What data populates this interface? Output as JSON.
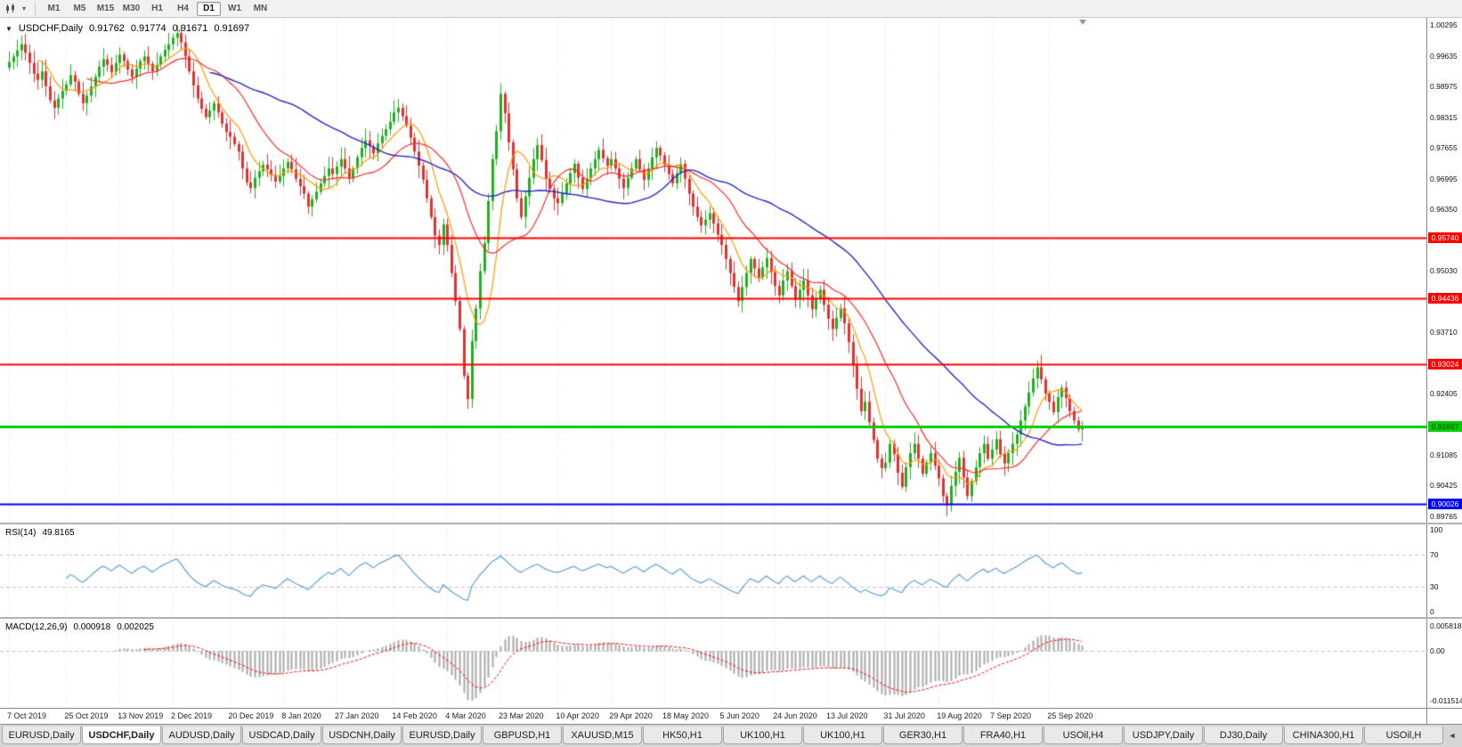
{
  "toolbar": {
    "timeframes": [
      "M1",
      "M5",
      "M15",
      "M30",
      "H1",
      "H4",
      "D1",
      "W1",
      "MN"
    ],
    "active_timeframe": "D1"
  },
  "header": {
    "symbol": "USDCHF,Daily",
    "open": "0.91762",
    "high": "0.91774",
    "low": "0.91671",
    "close": "0.91697"
  },
  "rsi_panel": {
    "label": "RSI(14)",
    "value": "49.8165",
    "y_ticks": [
      "100",
      "70",
      "30",
      "0"
    ]
  },
  "macd_panel": {
    "label": "MACD(12,26,9)",
    "value_main": "0.000918",
    "value_signal": "0.002025",
    "y_ticks": [
      "0.005818",
      "0.00",
      "-0.011514"
    ]
  },
  "price_axis": {
    "ticks": [
      "1.00295",
      "0.99635",
      "0.98975",
      "0.98315",
      "0.97655",
      "0.96995",
      "0.96350",
      "0.95030",
      "0.93710",
      "0.92405",
      "0.91085",
      "0.90425",
      "0.89765"
    ]
  },
  "time_axis": {
    "dates": [
      "7 Oct 2019",
      "25 Oct 2019",
      "13 Nov 2019",
      "2 Dec 2019",
      "20 Dec 2019",
      "8 Jan 2020",
      "27 Jan 2020",
      "14 Feb 2020",
      "4 Mar 2020",
      "23 Mar 2020",
      "10 Apr 2020",
      "29 Apr 2020",
      "18 May 2020",
      "5 Jun 2020",
      "24 Jun 2020",
      "13 Jul 2020",
      "31 Jul 2020",
      "19 Aug 2020",
      "7 Sep 2020",
      "25 Sep 2020"
    ]
  },
  "tabs": {
    "items": [
      "EURUSD,Daily",
      "USDCHF,Daily",
      "AUDUSD,Daily",
      "USDCAD,Daily",
      "USDCNH,Daily",
      "EURUSD,Daily",
      "GBPUSD,H1",
      "XAUUSD,M15",
      "HK50,H1",
      "UK100,H1",
      "UK100,H1",
      "GER30,H1",
      "FRA40,H1",
      "USOil,H4",
      "USDJPY,Daily",
      "DJ30,Daily",
      "CHINA300,H1",
      "USOil,H"
    ],
    "active_index": 1,
    "scroll_left_icon": "◄"
  },
  "chart_data": [
    {
      "type": "candlestick",
      "title": "USDCHF,Daily",
      "ylim": [
        0.89765,
        1.00295
      ],
      "y_tick_labels": [
        "1.00295",
        "0.99635",
        "0.98975",
        "0.98315",
        "0.97655",
        "0.96995",
        "0.96350",
        "0.95030",
        "0.93710",
        "0.92405",
        "0.91085",
        "0.90425",
        "0.89765"
      ],
      "x_tick_labels": [
        "7 Oct 2019",
        "25 Oct 2019",
        "13 Nov 2019",
        "2 Dec 2019",
        "20 Dec 2019",
        "8 Jan 2020",
        "27 Jan 2020",
        "14 Feb 2020",
        "4 Mar 2020",
        "23 Mar 2020",
        "10 Apr 2020",
        "29 Apr 2020",
        "18 May 2020",
        "5 Jun 2020",
        "24 Jun 2020",
        "13 Jul 2020",
        "31 Jul 2020",
        "19 Aug 2020",
        "7 Sep 2020",
        "25 Sep 2020"
      ],
      "x_grid_indices": [
        0,
        14,
        27,
        40,
        54,
        67,
        80,
        94,
        107,
        120,
        134,
        147,
        160,
        174,
        187,
        200,
        214,
        227,
        240,
        254
      ],
      "last_candle_ohlc": {
        "open": 0.91762,
        "high": 0.91774,
        "low": 0.91671,
        "close": 0.91697
      },
      "closes": [
        0.995,
        0.9962,
        0.9975,
        0.9988,
        0.997,
        0.9948,
        0.9925,
        0.9912,
        0.993,
        0.9898,
        0.9868,
        0.9852,
        0.9872,
        0.9888,
        0.9902,
        0.9922,
        0.9908,
        0.9882,
        0.9862,
        0.9878,
        0.9898,
        0.9918,
        0.994,
        0.9956,
        0.9944,
        0.9928,
        0.9948,
        0.9966,
        0.9952,
        0.9934,
        0.9918,
        0.9936,
        0.9952,
        0.9962,
        0.9946,
        0.993,
        0.9944,
        0.9962,
        0.9976,
        0.9988,
        1.0002,
        1.0012,
        0.9992,
        0.9962,
        0.993,
        0.99,
        0.9872,
        0.985,
        0.9832,
        0.9846,
        0.9862,
        0.9842,
        0.9818,
        0.98,
        0.979,
        0.9774,
        0.9758,
        0.9722,
        0.9692,
        0.968,
        0.9702,
        0.9716,
        0.973,
        0.972,
        0.9708,
        0.9694,
        0.9706,
        0.9722,
        0.9736,
        0.972,
        0.97,
        0.9684,
        0.9668,
        0.964,
        0.9656,
        0.9672,
        0.969,
        0.9706,
        0.9722,
        0.971,
        0.9726,
        0.9742,
        0.9722,
        0.97,
        0.9722,
        0.9746,
        0.9766,
        0.9782,
        0.977,
        0.9754,
        0.9776,
        0.9792,
        0.9806,
        0.9822,
        0.9842,
        0.9852,
        0.9834,
        0.9814,
        0.9788,
        0.9758,
        0.9728,
        0.9698,
        0.9658,
        0.9618,
        0.9578,
        0.9558,
        0.9602,
        0.9558,
        0.9498,
        0.9438,
        0.9378,
        0.9278,
        0.9228,
        0.9352,
        0.9422,
        0.9502,
        0.9562,
        0.9652,
        0.9742,
        0.9802,
        0.9882,
        0.984,
        0.9778,
        0.972,
        0.9658,
        0.9618,
        0.9662,
        0.9702,
        0.9742,
        0.9772,
        0.974,
        0.97,
        0.9678,
        0.9658,
        0.9648,
        0.9668,
        0.969,
        0.9712,
        0.9732,
        0.9702,
        0.9678,
        0.97,
        0.9722,
        0.9742,
        0.9762,
        0.9744,
        0.9728,
        0.9742,
        0.9722,
        0.97,
        0.968,
        0.9702,
        0.9722,
        0.9742,
        0.972,
        0.9698,
        0.9722,
        0.9746,
        0.9766,
        0.975,
        0.973,
        0.971,
        0.969,
        0.9712,
        0.9732,
        0.97,
        0.9668,
        0.964,
        0.9618,
        0.96,
        0.9612,
        0.9626,
        0.9604,
        0.958,
        0.9558,
        0.9528,
        0.9498,
        0.9468,
        0.9438,
        0.9468,
        0.9498,
        0.9528,
        0.9508,
        0.9488,
        0.951,
        0.953,
        0.95,
        0.947,
        0.945,
        0.9482,
        0.9502,
        0.947,
        0.944,
        0.9462,
        0.9482,
        0.945,
        0.942,
        0.9442,
        0.9462,
        0.943,
        0.94,
        0.9378,
        0.9402,
        0.9422,
        0.939,
        0.935,
        0.93,
        0.925,
        0.9202,
        0.9222,
        0.9178,
        0.914,
        0.91,
        0.908,
        0.9092,
        0.9132,
        0.911,
        0.907,
        0.904,
        0.9082,
        0.9112,
        0.9132,
        0.91,
        0.9068,
        0.9092,
        0.9112,
        0.9085,
        0.9058,
        0.902,
        0.9,
        0.9042,
        0.9072,
        0.9102,
        0.906,
        0.902,
        0.9052,
        0.9082,
        0.9112,
        0.9132,
        0.91,
        0.912,
        0.9142,
        0.911,
        0.909,
        0.9112,
        0.9132,
        0.9152,
        0.9182,
        0.9212,
        0.9242,
        0.9272,
        0.9296,
        0.927,
        0.924,
        0.9222,
        0.92,
        0.9232,
        0.9252,
        0.923,
        0.9202,
        0.9182,
        0.9163,
        0.91697
      ],
      "bull_color": "#1FAF1F",
      "bear_color": "#E43030",
      "ma_colors": {
        "fast": "#FF9900",
        "medium": "#FF2A2A",
        "slow": "#2727C8"
      },
      "levels": [
        {
          "price": 0.9574,
          "label": "0.95740",
          "color": "#FF0000",
          "text_color": "#FFFFFF",
          "line_width": 2
        },
        {
          "price": 0.94436,
          "label": "0.94436",
          "color": "#FF0000",
          "text_color": "#FFFFFF",
          "line_width": 2
        },
        {
          "price": 0.93024,
          "label": "0.93024",
          "color": "#FF0000",
          "text_color": "#FFFFFF",
          "line_width": 2
        },
        {
          "price": 0.91697,
          "label": "0.91697",
          "color": "#00CE00",
          "text_color": "#003300",
          "line_width": 3
        },
        {
          "price": 0.90026,
          "label": "0.90026",
          "color": "#0000FF",
          "text_color": "#FFFFFF",
          "line_width": 2
        }
      ]
    },
    {
      "type": "line",
      "name": "RSI",
      "label": "RSI(14)",
      "current_value": 49.8165,
      "ylim": [
        0,
        100
      ],
      "y_ticks": [
        100,
        70,
        30,
        0
      ],
      "overbought": 70,
      "oversold": 30,
      "color": "#4E9AD4"
    },
    {
      "type": "bar",
      "name": "MACD",
      "label": "MACD(12,26,9)",
      "current_values": [
        0.000918,
        0.002025
      ],
      "ylim": [
        -0.011514,
        0.005818
      ],
      "y_ticks": [
        0.005818,
        0.0,
        -0.011514
      ],
      "histogram_color": "#A8A8A8",
      "signal_color": "#FF0000",
      "signal_style": "dashed"
    }
  ]
}
